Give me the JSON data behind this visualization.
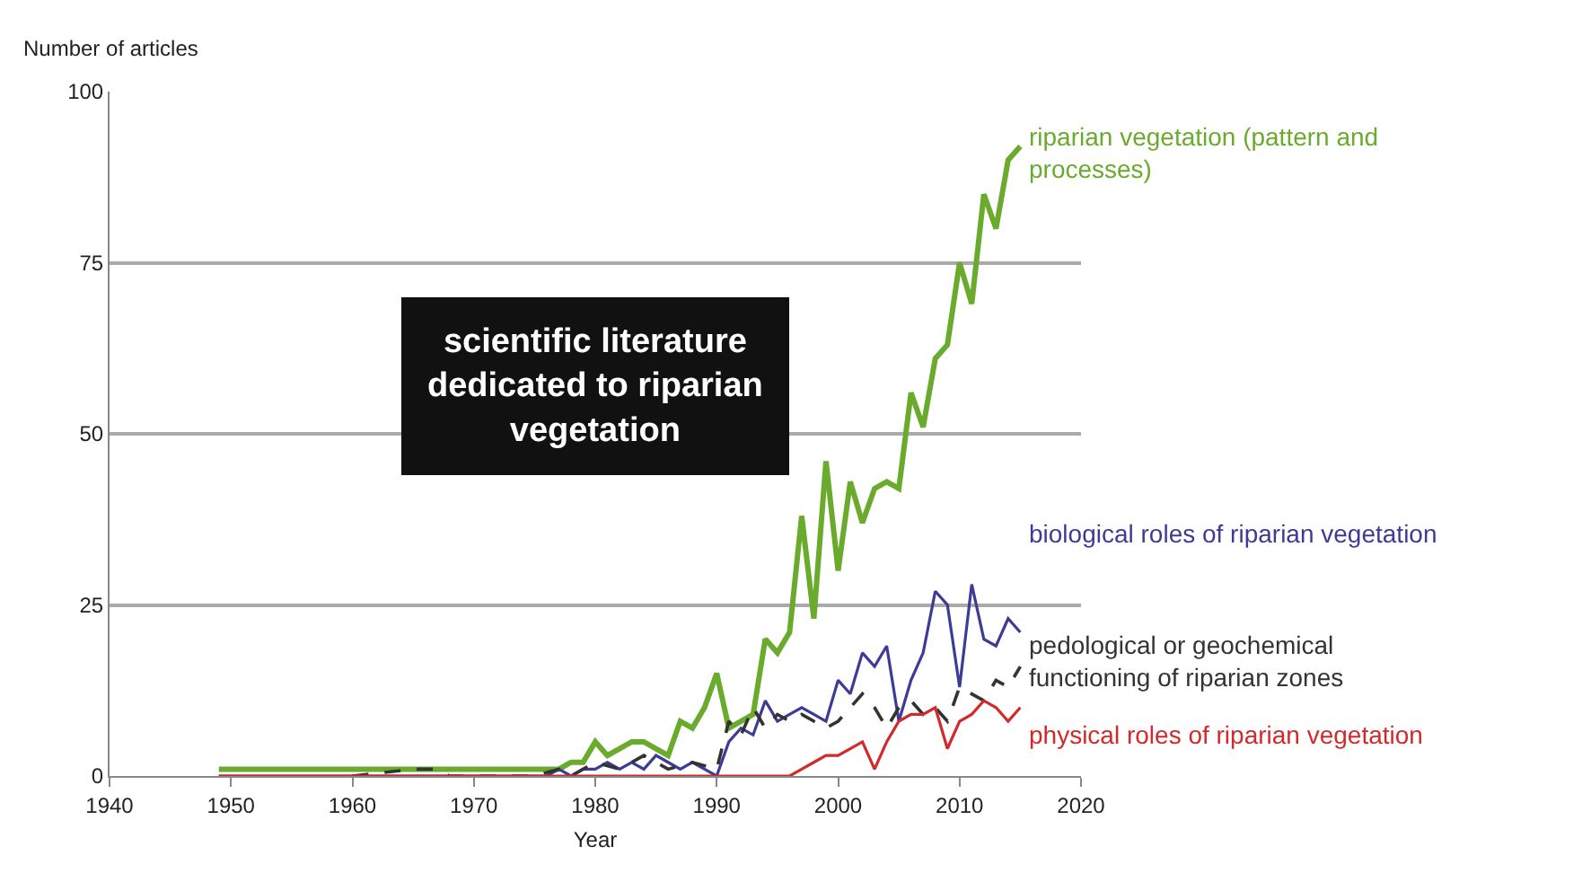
{
  "chart_data": {
    "type": "line",
    "xlabel": "Year",
    "ylabel": "Number of articles",
    "xlim": [
      1940,
      2020
    ],
    "xticks": [
      1940,
      1950,
      1960,
      1970,
      1980,
      1990,
      2000,
      2010,
      2020
    ],
    "ylim": [
      0,
      100
    ],
    "yticks": [
      0,
      25,
      50,
      75,
      100
    ],
    "grid": "y",
    "legend": false,
    "marker": "none",
    "annotations": [
      "scientific literature\ndedicated to riparian\nvegetation"
    ],
    "series": [
      {
        "name": "riparian vegetation (pattern and\nprocesses)",
        "color": "#6aab2e",
        "line_style": "solid",
        "x": [
          1949,
          1976,
          1977,
          1978,
          1979,
          1980,
          1981,
          1982,
          1983,
          1984,
          1985,
          1986,
          1987,
          1988,
          1989,
          1990,
          1991,
          1992,
          1993,
          1994,
          1995,
          1996,
          1997,
          1998,
          1999,
          2000,
          2001,
          2002,
          2003,
          2004,
          2005,
          2006,
          2007,
          2008,
          2009,
          2010,
          2011,
          2012,
          2013,
          2014,
          2015
        ],
        "values": [
          1,
          1,
          1,
          2,
          2,
          5,
          3,
          4,
          5,
          5,
          4,
          3,
          8,
          7,
          10,
          15,
          7,
          8,
          9,
          20,
          18,
          21,
          38,
          23,
          46,
          30,
          43,
          37,
          42,
          43,
          42,
          56,
          51,
          61,
          63,
          75,
          69,
          85,
          80,
          90,
          92
        ]
      },
      {
        "name": "biological roles of riparian vegetation",
        "color": "#3c3c96",
        "line_style": "solid",
        "x": [
          1949,
          1976,
          1977,
          1978,
          1979,
          1980,
          1981,
          1982,
          1983,
          1984,
          1985,
          1986,
          1987,
          1988,
          1989,
          1990,
          1991,
          1992,
          1993,
          1994,
          1995,
          1996,
          1997,
          1998,
          1999,
          2000,
          2001,
          2002,
          2003,
          2004,
          2005,
          2006,
          2007,
          2008,
          2009,
          2010,
          2011,
          2012,
          2013,
          2014,
          2015
        ],
        "values": [
          0,
          0,
          1,
          0,
          1,
          1,
          2,
          1,
          2,
          1,
          3,
          2,
          1,
          2,
          1,
          0,
          5,
          7,
          6,
          11,
          8,
          9,
          10,
          9,
          8,
          14,
          12,
          18,
          16,
          19,
          8,
          14,
          18,
          27,
          25,
          13,
          28,
          20,
          19,
          23,
          21
        ]
      },
      {
        "name": "pedological or geochemical\nfunctioning of riparian zones",
        "color": "#333333",
        "line_style": "dashed",
        "x": [
          1960,
          1965,
          1967,
          1968,
          1975,
          1977,
          1978,
          1980,
          1982,
          1984,
          1986,
          1988,
          1990,
          1991,
          1992,
          1993,
          1994,
          1995,
          1996,
          1997,
          1998,
          1999,
          2000,
          2001,
          2002,
          2003,
          2004,
          2005,
          2006,
          2007,
          2008,
          2009,
          2010,
          2011,
          2012,
          2013,
          2014,
          2015
        ],
        "values": [
          0,
          1,
          1,
          0,
          0,
          1,
          0,
          2,
          1,
          3,
          1,
          2,
          1,
          8,
          6,
          10,
          7,
          9,
          8,
          9,
          8,
          7,
          8,
          10,
          12,
          10,
          7,
          10,
          11,
          9,
          10,
          8,
          13,
          12,
          11,
          14,
          13,
          16
        ]
      },
      {
        "name": "physical roles of riparian vegetation",
        "color": "#d22a2a",
        "line_style": "solid",
        "x": [
          1949,
          1991,
          1996,
          1997,
          1998,
          1999,
          2000,
          2001,
          2002,
          2003,
          2004,
          2005,
          2006,
          2007,
          2008,
          2009,
          2010,
          2011,
          2012,
          2013,
          2014,
          2015
        ],
        "values": [
          0,
          0,
          0,
          1,
          2,
          3,
          3,
          4,
          5,
          1,
          5,
          8,
          9,
          9,
          10,
          4,
          8,
          9,
          11,
          10,
          8,
          10
        ]
      }
    ]
  }
}
